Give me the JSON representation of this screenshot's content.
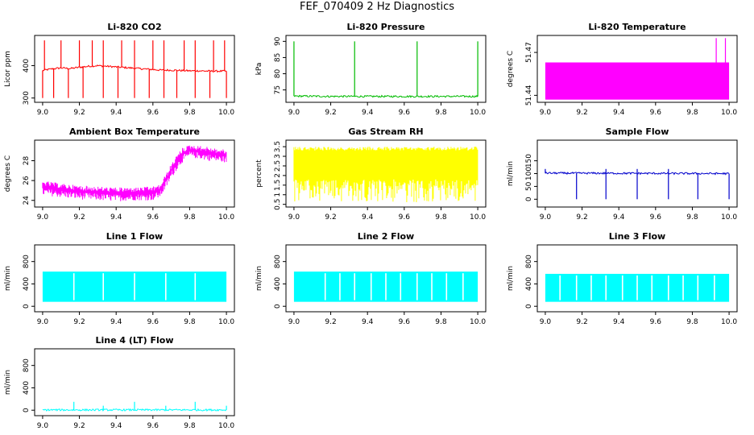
{
  "page_title": "FEF_070409  2 Hz Diagnostics",
  "chart_data": [
    {
      "type": "line",
      "title": "Li-820 CO2",
      "ylabel": "Licor ppm",
      "xlabel": "",
      "color": "#ff0000",
      "xlim": [
        9.0,
        10.0
      ],
      "ylim": [
        295,
        485
      ],
      "xticks": [
        "9.0",
        "9.2",
        "9.4",
        "9.6",
        "9.8",
        "10.0"
      ],
      "yticks": [
        300,
        400
      ],
      "series": [
        {
          "name": "CO2",
          "x": [
            9.0,
            9.05,
            9.1,
            9.15,
            9.2,
            9.25,
            9.3,
            9.35,
            9.4,
            9.45,
            9.5,
            9.55,
            9.6,
            9.65,
            9.7,
            9.75,
            9.8,
            9.85,
            9.9,
            9.95,
            10.0
          ],
          "values": [
            385,
            390,
            393,
            391,
            395,
            398,
            400,
            398,
            396,
            394,
            392,
            390,
            388,
            386,
            386,
            385,
            384,
            384,
            383,
            383,
            383
          ],
          "spikes_up": [
            9.01,
            9.1,
            9.2,
            9.27,
            9.33,
            9.43,
            9.5,
            9.6,
            9.66,
            9.77,
            9.83,
            9.93,
            9.99
          ],
          "spike_up_value": 478,
          "spikes_down": [
            9.0,
            9.06,
            9.14,
            9.22,
            9.33,
            9.41,
            9.5,
            9.58,
            9.66,
            9.73,
            9.83,
            9.91,
            10.0
          ],
          "spike_down_value": 300
        }
      ]
    },
    {
      "type": "line",
      "title": "Li-820 Pressure",
      "ylabel": "kPa",
      "xlabel": "",
      "color": "#00bb00",
      "xlim": [
        9.0,
        10.0
      ],
      "ylim": [
        72,
        91
      ],
      "xticks": [
        "9.0",
        "9.2",
        "9.4",
        "9.6",
        "9.8",
        "10.0"
      ],
      "yticks": [
        75,
        80,
        85,
        90
      ],
      "series": [
        {
          "name": "Pressure",
          "x": [
            9.0,
            9.2,
            9.4,
            9.6,
            9.8,
            10.0
          ],
          "values": [
            73.1,
            73.0,
            73.0,
            73.0,
            73.0,
            73.0
          ],
          "spikes_up": [
            9.0,
            9.33,
            9.67,
            10.0
          ],
          "spike_up_value": 90
        }
      ]
    },
    {
      "type": "area",
      "title": "Li-820 Temperature",
      "ylabel": "degrees C",
      "xlabel": "",
      "color": "#ff00ff",
      "xlim": [
        9.0,
        10.0
      ],
      "ylim": [
        51.437,
        51.48
      ],
      "xticks": [
        "9.0",
        "9.2",
        "9.4",
        "9.6",
        "9.8",
        "10.0"
      ],
      "yticks": [
        51.44,
        51.47
      ],
      "series": [
        {
          "name": "Temperature",
          "band": [
            51.437,
            51.463
          ],
          "spikes_up": [
            9.93,
            9.98
          ],
          "spike_up_value": 51.48
        }
      ]
    },
    {
      "type": "line",
      "title": "Ambient Box Temperature",
      "ylabel": "degrees C",
      "xlabel": "",
      "color": "#ff00ff",
      "xlim": [
        9.0,
        10.0
      ],
      "ylim": [
        23.6,
        29.8
      ],
      "xticks": [
        "9.0",
        "9.2",
        "9.4",
        "9.6",
        "9.8",
        "10.0"
      ],
      "yticks": [
        24,
        26,
        28
      ],
      "series": [
        {
          "name": "Ambient",
          "x": [
            9.0,
            9.1,
            9.2,
            9.3,
            9.4,
            9.5,
            9.6,
            9.64,
            9.68,
            9.72,
            9.76,
            9.8,
            9.85,
            9.9,
            9.95,
            10.0
          ],
          "upper": [
            26.0,
            25.7,
            25.5,
            25.4,
            25.3,
            25.3,
            25.4,
            25.6,
            27.0,
            28.3,
            29.3,
            29.6,
            29.5,
            29.4,
            29.2,
            29.1
          ],
          "lower": [
            24.5,
            24.3,
            24.1,
            24.0,
            23.9,
            24.0,
            24.0,
            24.3,
            25.5,
            26.8,
            27.8,
            28.3,
            28.2,
            28.0,
            27.9,
            27.8
          ]
        }
      ]
    },
    {
      "type": "area",
      "title": "Gas Stream RH",
      "ylabel": "percent",
      "xlabel": "",
      "color": "#ffff00",
      "xlim": [
        9.0,
        10.0
      ],
      "ylim": [
        0.5,
        3.7
      ],
      "xticks": [
        "9.0",
        "9.2",
        "9.4",
        "9.6",
        "9.8",
        "10.0"
      ],
      "yticks": [
        0.5,
        1.0,
        1.5,
        2.0,
        2.5,
        3.0,
        3.5
      ],
      "series": [
        {
          "name": "RH",
          "band": [
            0.6,
            3.5
          ],
          "dense_low": 1.8,
          "dense_high": 3.3
        }
      ]
    },
    {
      "type": "line",
      "title": "Sample Flow",
      "ylabel": "ml/min",
      "xlabel": "",
      "color": "#0000cc",
      "xlim": [
        9.0,
        10.0
      ],
      "ylim": [
        -20,
        220
      ],
      "xticks": [
        "9.0",
        "9.2",
        "9.4",
        "9.6",
        "9.8",
        "10.0"
      ],
      "yticks": [
        0,
        50,
        100,
        150
      ],
      "series": [
        {
          "name": "Sample",
          "x": [
            9.0,
            10.0
          ],
          "values": [
            102,
            100
          ],
          "spikes_down": [
            9.17,
            9.33,
            9.5,
            9.67,
            9.83,
            10.0
          ],
          "spike_down_value": 0,
          "spikes_up": [
            9.0,
            9.33,
            9.5,
            9.67
          ],
          "spike_up_value": 118
        }
      ]
    },
    {
      "type": "area",
      "title": "Line 1 Flow",
      "ylabel": "ml/min",
      "xlabel": "",
      "color": "#00ffff",
      "xlim": [
        9.0,
        10.0
      ],
      "ylim": [
        -50,
        1050
      ],
      "xticks": [
        "9.0",
        "9.2",
        "9.4",
        "9.6",
        "9.8",
        "10.0"
      ],
      "yticks": [
        0,
        400,
        800
      ],
      "series": [
        {
          "name": "Line 1",
          "band": [
            80,
            620
          ],
          "gaps": [
            9.17,
            9.33,
            9.5,
            9.67,
            9.83
          ]
        }
      ]
    },
    {
      "type": "area",
      "title": "Line 2 Flow",
      "ylabel": "ml/min",
      "xlabel": "",
      "color": "#00ffff",
      "xlim": [
        9.0,
        10.0
      ],
      "ylim": [
        -50,
        1050
      ],
      "xticks": [
        "9.0",
        "9.2",
        "9.4",
        "9.6",
        "9.8",
        "10.0"
      ],
      "yticks": [
        0,
        400,
        800
      ],
      "series": [
        {
          "name": "Line 2",
          "band": [
            80,
            620
          ],
          "gaps": [
            9.17,
            9.25,
            9.33,
            9.42,
            9.5,
            9.58,
            9.67,
            9.75,
            9.83,
            9.92
          ]
        }
      ]
    },
    {
      "type": "area",
      "title": "Line 3 Flow",
      "ylabel": "ml/min",
      "xlabel": "",
      "color": "#00ffff",
      "xlim": [
        9.0,
        10.0
      ],
      "ylim": [
        -50,
        1050
      ],
      "xticks": [
        "9.0",
        "9.2",
        "9.4",
        "9.6",
        "9.8",
        "10.0"
      ],
      "yticks": [
        0,
        400,
        800
      ],
      "series": [
        {
          "name": "Line 3",
          "band": [
            80,
            580
          ],
          "gaps": [
            9.08,
            9.17,
            9.25,
            9.33,
            9.42,
            9.5,
            9.58,
            9.67,
            9.75,
            9.83,
            9.92
          ]
        }
      ]
    },
    {
      "type": "line",
      "title": "Line 4 (LT) Flow",
      "ylabel": "ml/min",
      "xlabel": "",
      "color": "#00ffff",
      "xlim": [
        9.0,
        10.0
      ],
      "ylim": [
        -50,
        1050
      ],
      "xticks": [
        "9.0",
        "9.2",
        "9.4",
        "9.6",
        "9.8",
        "10.0"
      ],
      "yticks": [
        0,
        400,
        800
      ],
      "series": [
        {
          "name": "Line 4",
          "x": [
            9.0,
            10.0
          ],
          "values": [
            5,
            5
          ],
          "spikes_up": [
            9.17,
            9.33,
            9.5,
            9.67,
            9.83,
            10.0
          ],
          "spike_up_values": [
            150,
            80,
            150,
            80,
            150,
            80
          ]
        }
      ]
    }
  ]
}
